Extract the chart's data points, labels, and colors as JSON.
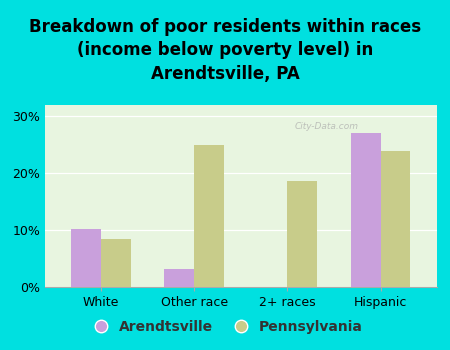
{
  "title": "Breakdown of poor residents within races\n(income below poverty level) in\nArendtsville, PA",
  "categories": [
    "White",
    "Other race",
    "2+ races",
    "Hispanic"
  ],
  "arendtsville_values": [
    10.2,
    3.2,
    0.0,
    27.0
  ],
  "pennsylvania_values": [
    8.5,
    25.0,
    18.7,
    24.0
  ],
  "arendtsville_color": "#c9a0dc",
  "pennsylvania_color": "#c8cc8a",
  "background_color": "#00e0e0",
  "plot_bg_color": "#e8f5e0",
  "yticks": [
    0,
    10,
    20,
    30
  ],
  "ylim": [
    0,
    32
  ],
  "bar_width": 0.32,
  "legend_labels": [
    "Arendtsville",
    "Pennsylvania"
  ],
  "watermark": "City-Data.com",
  "title_fontsize": 12,
  "tick_fontsize": 9,
  "legend_fontsize": 10
}
